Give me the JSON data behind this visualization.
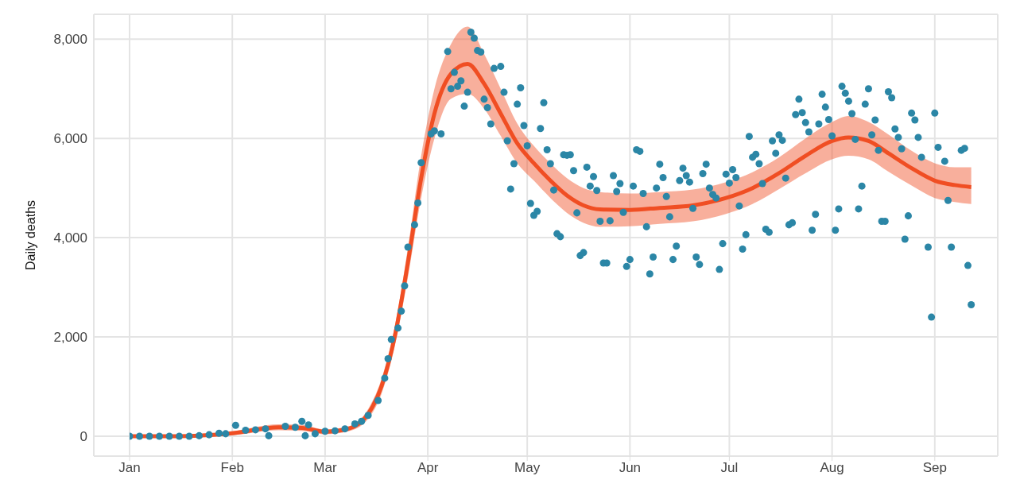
{
  "chart_data": {
    "type": "scatter",
    "ylabel": "Daily deaths",
    "xlim": [
      "--01-01",
      "--09-20"
    ],
    "xticks": [
      {
        "value": "--01-01",
        "label": "Jan"
      },
      {
        "value": "--02-01",
        "label": "Feb"
      },
      {
        "value": "--03-01",
        "label": "Mar"
      },
      {
        "value": "--04-01",
        "label": "Apr"
      },
      {
        "value": "--05-01",
        "label": "May"
      },
      {
        "value": "--06-01",
        "label": "Jun"
      },
      {
        "value": "--07-01",
        "label": "Jul"
      },
      {
        "value": "--08-01",
        "label": "Aug"
      },
      {
        "value": "--09-01",
        "label": "Sep"
      }
    ],
    "ylim": [
      -400,
      8500
    ],
    "yticks": [
      {
        "value": 0,
        "label": "0"
      },
      {
        "value": 2000,
        "label": "2,000"
      },
      {
        "value": 4000,
        "label": "4,000"
      },
      {
        "value": 6000,
        "label": "6,000"
      },
      {
        "value": 8000,
        "label": "8,000"
      }
    ],
    "grid": true,
    "series": [
      {
        "marker": "circle",
        "color": "#2b86a6",
        "x": [
          "--01-01",
          "--01-04",
          "--01-07",
          "--01-10",
          "--01-13",
          "--01-16",
          "--01-19",
          "--01-22",
          "--01-25",
          "--01-28",
          "--01-30",
          "--02-02",
          "--02-05",
          "--02-08",
          "--02-11",
          "--02-12",
          "--02-17",
          "--02-20",
          "--02-22",
          "--02-23",
          "--02-24",
          "--02-26",
          "--03-01",
          "--03-04",
          "--03-07",
          "--03-10",
          "--03-12",
          "--03-14",
          "--03-17",
          "--03-19",
          "--03-20",
          "--03-21",
          "--03-23",
          "--03-24",
          "--03-25",
          "--03-26",
          "--03-28",
          "--03-29",
          "--03-30",
          "--04-02",
          "--04-03",
          "--04-05",
          "--04-07",
          "--04-08",
          "--04-09",
          "--04-10",
          "--04-11",
          "--04-12",
          "--04-13",
          "--04-14",
          "--04-15",
          "--04-16",
          "--04-17",
          "--04-18",
          "--04-19",
          "--04-20",
          "--04-21",
          "--04-23",
          "--04-24",
          "--04-25",
          "--04-26",
          "--04-27",
          "--04-28",
          "--04-29",
          "--04-30",
          "--05-01",
          "--05-02",
          "--05-03",
          "--05-04",
          "--05-05",
          "--05-06",
          "--05-07",
          "--05-08",
          "--05-09",
          "--05-10",
          "--05-11",
          "--05-12",
          "--05-13",
          "--05-14",
          "--05-15",
          "--05-16",
          "--05-17",
          "--05-18",
          "--05-19",
          "--05-20",
          "--05-21",
          "--05-22",
          "--05-23",
          "--05-24",
          "--05-25",
          "--05-26",
          "--05-27",
          "--05-28",
          "--05-29",
          "--05-30",
          "--05-31",
          "--06-01",
          "--06-02",
          "--06-03",
          "--06-04",
          "--06-05",
          "--06-06",
          "--06-07",
          "--06-08",
          "--06-09",
          "--06-10",
          "--06-11",
          "--06-12",
          "--06-13",
          "--06-14",
          "--06-15",
          "--06-16",
          "--06-17",
          "--06-18",
          "--06-19",
          "--06-20",
          "--06-21",
          "--06-22",
          "--06-23",
          "--06-24",
          "--06-25",
          "--06-26",
          "--06-27",
          "--06-28",
          "--06-29",
          "--06-30",
          "--07-01",
          "--07-02",
          "--07-03",
          "--07-04",
          "--07-05",
          "--07-06",
          "--07-07",
          "--07-08",
          "--07-09",
          "--07-10",
          "--07-11",
          "--07-12",
          "--07-13",
          "--07-14",
          "--07-15",
          "--07-16",
          "--07-17",
          "--07-18",
          "--07-19",
          "--07-20",
          "--07-21",
          "--07-22",
          "--07-23",
          "--07-24",
          "--07-25",
          "--07-26",
          "--07-27",
          "--07-28",
          "--07-29",
          "--07-30",
          "--07-31",
          "--08-01",
          "--08-02",
          "--08-03",
          "--08-04",
          "--08-05",
          "--08-06",
          "--08-07",
          "--08-08",
          "--08-09",
          "--08-10",
          "--08-11",
          "--08-12",
          "--08-13",
          "--08-14",
          "--08-15",
          "--08-16",
          "--08-17",
          "--08-18",
          "--08-19",
          "--08-20",
          "--08-21",
          "--08-22",
          "--08-23",
          "--08-24",
          "--08-25",
          "--08-26",
          "--08-27",
          "--08-28",
          "--08-30",
          "--08-31",
          "--09-01",
          "--09-02",
          "--09-04",
          "--09-05",
          "--09-06",
          "--09-09",
          "--09-10",
          "--09-11",
          "--09-12"
        ],
        "values": [
          0,
          0,
          0,
          0,
          0,
          0,
          0,
          10,
          30,
          60,
          50,
          220,
          120,
          130,
          150,
          10,
          200,
          180,
          300,
          10,
          230,
          50,
          100,
          110,
          150,
          250,
          300,
          420,
          720,
          1170,
          1560,
          1950,
          2180,
          2520,
          3030,
          3810,
          4260,
          4700,
          5510,
          6090,
          6150,
          6090,
          7750,
          7000,
          7330,
          7050,
          7160,
          6650,
          6930,
          8140,
          8020,
          7770,
          7740,
          6790,
          6620,
          6290,
          7410,
          7450,
          6930,
          5950,
          4980,
          5490,
          6690,
          7020,
          6260,
          5850,
          4690,
          4450,
          4530,
          6200,
          6720,
          5770,
          5490,
          4960,
          4080,
          4020,
          5670,
          5660,
          5670,
          5350,
          4500,
          3640,
          3700,
          5420,
          5040,
          5230,
          4950,
          4330,
          3490,
          3490,
          4340,
          5250,
          4930,
          5090,
          4510,
          3420,
          3560,
          5040,
          5770,
          5740,
          4890,
          4220,
          3270,
          3610,
          5000,
          5480,
          5210,
          4830,
          4420,
          3560,
          3830,
          5150,
          5400,
          5250,
          5120,
          4590,
          3610,
          3460,
          5290,
          5480,
          5000,
          4870,
          4800,
          3360,
          3880,
          5280,
          5100,
          5370,
          5210,
          4640,
          3770,
          4060,
          6040,
          5620,
          5680,
          5490,
          5090,
          4170,
          4110,
          5950,
          5700,
          6070,
          5960,
          5200,
          4260,
          4300,
          6480,
          6790,
          6520,
          6320,
          6130,
          4150,
          4470,
          6290,
          6890,
          6630,
          6380,
          6050,
          4150,
          4580,
          7050,
          6910,
          6750,
          6500,
          5980,
          4580,
          5040,
          6690,
          7000,
          6070,
          6370,
          5760,
          4330,
          4330,
          6940,
          6820,
          6190,
          6020,
          5790,
          3970,
          4440,
          6510,
          6370,
          6020,
          5620,
          3810,
          2400,
          6510,
          5820,
          5540,
          4750,
          3810,
          5760,
          5800,
          3440,
          2650
        ]
      },
      {
        "type": "line",
        "marker": "none",
        "line_style": "solid",
        "color": "#f04e23",
        "x": [
          "--01-01",
          "--01-15",
          "--02-01",
          "--02-15",
          "--02-22",
          "--03-01",
          "--03-08",
          "--03-14",
          "--03-18",
          "--03-22",
          "--03-26",
          "--03-30",
          "--04-03",
          "--04-08",
          "--04-13",
          "--04-18",
          "--04-23",
          "--04-28",
          "--05-03",
          "--05-08",
          "--05-13",
          "--05-18",
          "--05-23",
          "--06-01",
          "--06-10",
          "--06-20",
          "--06-30",
          "--07-08",
          "--07-16",
          "--07-24",
          "--08-01",
          "--08-06",
          "--08-12",
          "--08-18",
          "--08-25",
          "--09-01",
          "--09-07",
          "--09-12"
        ],
        "values": [
          0,
          0,
          60,
          180,
          170,
          90,
          150,
          450,
          1000,
          2000,
          3500,
          5200,
          6500,
          7300,
          7500,
          7100,
          6500,
          5900,
          5500,
          5150,
          4850,
          4650,
          4570,
          4560,
          4600,
          4650,
          4800,
          5000,
          5300,
          5650,
          5950,
          6020,
          5950,
          5700,
          5400,
          5150,
          5060,
          5020
        ],
        "lower": [
          -20,
          -20,
          20,
          120,
          110,
          40,
          100,
          350,
          850,
          1800,
          3200,
          4800,
          6000,
          6800,
          6900,
          6600,
          6050,
          5500,
          5150,
          4800,
          4500,
          4300,
          4220,
          4230,
          4280,
          4330,
          4480,
          4680,
          4980,
          5300,
          5580,
          5650,
          5580,
          5330,
          5050,
          4800,
          4720,
          4680
        ],
        "upper": [
          20,
          20,
          100,
          240,
          230,
          140,
          200,
          550,
          1150,
          2200,
          3800,
          5650,
          7000,
          7900,
          8250,
          7700,
          7000,
          6300,
          5850,
          5500,
          5200,
          5000,
          4920,
          4890,
          4920,
          4970,
          5120,
          5320,
          5620,
          6000,
          6330,
          6450,
          6330,
          6080,
          5750,
          5500,
          5420,
          5420
        ]
      }
    ]
  }
}
